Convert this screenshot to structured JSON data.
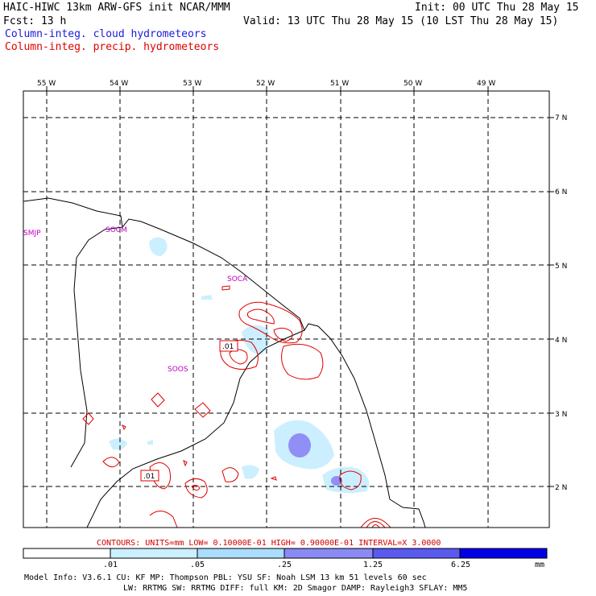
{
  "header": {
    "line1_left": "HAIC-HIWC 13km ARW-GFS init   NCAR/MMM",
    "line1_right": "Init: 00 UTC Thu 28 May 15",
    "line2_left": "Fcst:   13 h",
    "line2_right": "Valid: 13 UTC Thu 28 May 15 (10 LST Thu 28 May 15)",
    "field_cloud": "Column-integ. cloud hydrometeors",
    "field_precip": "Column-integ. precip. hydrometeors"
  },
  "map": {
    "lon_labels": [
      "55 W",
      "54 W",
      "53 W",
      "52 W",
      "51 W",
      "50 W",
      "49 W"
    ],
    "lat_labels": [
      "7 N",
      "6 N",
      "5 N",
      "4 N",
      "3 N",
      "2 N"
    ],
    "stations": [
      "SMJP",
      "SOCM",
      "SOCA",
      "SOOS"
    ],
    "contour_labels": [
      ".01",
      ".01"
    ]
  },
  "contour_info": "CONTOURS:  UNITS=mm  LOW= 0.10000E-01  HIGH= 0.90000E-01  INTERVAL=X  3.0000",
  "colorbar": {
    "ticks": [
      ".01",
      ".05",
      ".25",
      "1.25",
      "6.25"
    ],
    "units": "mm",
    "colors": [
      "#ffffff",
      "#cceeff",
      "#aaddff",
      "#8888ff",
      "#5555f0",
      "#0000e0"
    ]
  },
  "model_info": {
    "line1": "Model Info: V3.6.1    CU: KF      MP: Thompson    PBL: YSU      SF: Noah LSM     13 km   51 levels   60 sec",
    "line2": "LW: RRTMG    SW: RRTMG   DIFF: full   KM: 2D Smagor DAMP: Rayleigh3  SFLAY: MM5"
  }
}
